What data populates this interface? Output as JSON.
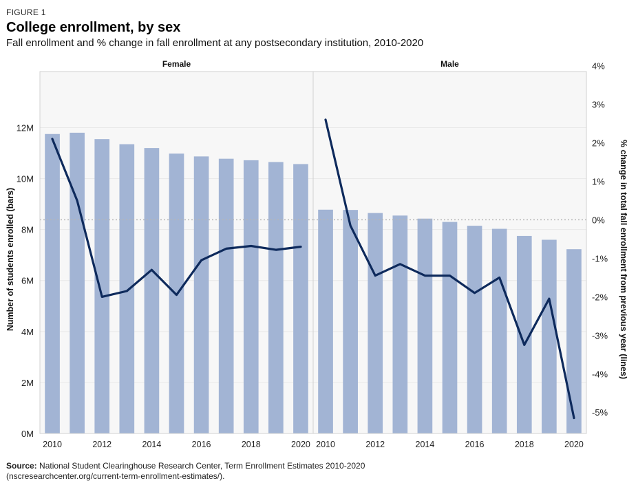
{
  "figure_label": "FIGURE 1",
  "title": "College enrollment, by sex",
  "subtitle": "Fall enrollment and % change in fall enrollment at any postsecondary institution, 2010-2020",
  "source": {
    "label": "Source:",
    "text": "National Student Clearinghouse Research Center, Term Enrollment Estimates 2010-2020",
    "text2": "(nscresearchcenter.org/current-term-enrollment-estimates/)."
  },
  "colors": {
    "bar": "#a2b4d4",
    "line": "#0e2a5c",
    "panel_bg": "#f7f7f7",
    "grid": "#e9e9e9",
    "zero_line": "#b5b5b5"
  },
  "chart_data": {
    "type": "bar",
    "secondary_type": "line",
    "ylabel": "Number of students enrolled (bars)",
    "y2label": "% change in total fall enrollment from previous year (lines)",
    "ylim": [
      0,
      14.2
    ],
    "y_ticks": [
      0,
      2,
      4,
      6,
      8,
      10,
      12
    ],
    "y_tick_labels": [
      "0M",
      "2M",
      "4M",
      "6M",
      "8M",
      "10M",
      "12M"
    ],
    "y2lim": [
      -5.55,
      3.85
    ],
    "y2_ticks": [
      -5,
      -4,
      -3,
      -2,
      -1,
      0,
      1,
      2,
      3,
      4
    ],
    "y2_tick_labels": [
      "-5%",
      "-4%",
      "-3%",
      "-2%",
      "-1%",
      "0%",
      "1%",
      "2%",
      "3%",
      "4%"
    ],
    "x_ticks": [
      2010,
      2012,
      2014,
      2016,
      2018,
      2020
    ],
    "x_tick_labels": [
      "2010",
      "2012",
      "2014",
      "2016",
      "2018",
      "2020"
    ],
    "grid": true,
    "panels": [
      {
        "name": "Female",
        "x": [
          2010,
          2011,
          2012,
          2013,
          2014,
          2015,
          2016,
          2017,
          2018,
          2019,
          2020
        ],
        "bars": [
          11.75,
          11.8,
          11.55,
          11.35,
          11.2,
          10.98,
          10.87,
          10.78,
          10.72,
          10.65,
          10.57
        ],
        "line": [
          2.1,
          0.5,
          -2.0,
          -1.85,
          -1.3,
          -1.95,
          -1.05,
          -0.75,
          -0.68,
          -0.78,
          -0.7
        ]
      },
      {
        "name": "Male",
        "x": [
          2010,
          2011,
          2012,
          2013,
          2014,
          2015,
          2016,
          2017,
          2018,
          2019,
          2020
        ],
        "bars": [
          8.78,
          8.77,
          8.65,
          8.55,
          8.43,
          8.3,
          8.15,
          8.03,
          7.75,
          7.6,
          7.23
        ],
        "line": [
          2.6,
          -0.15,
          -1.45,
          -1.15,
          -1.45,
          -1.45,
          -1.9,
          -1.5,
          -3.25,
          -2.05,
          -5.15
        ]
      }
    ]
  }
}
